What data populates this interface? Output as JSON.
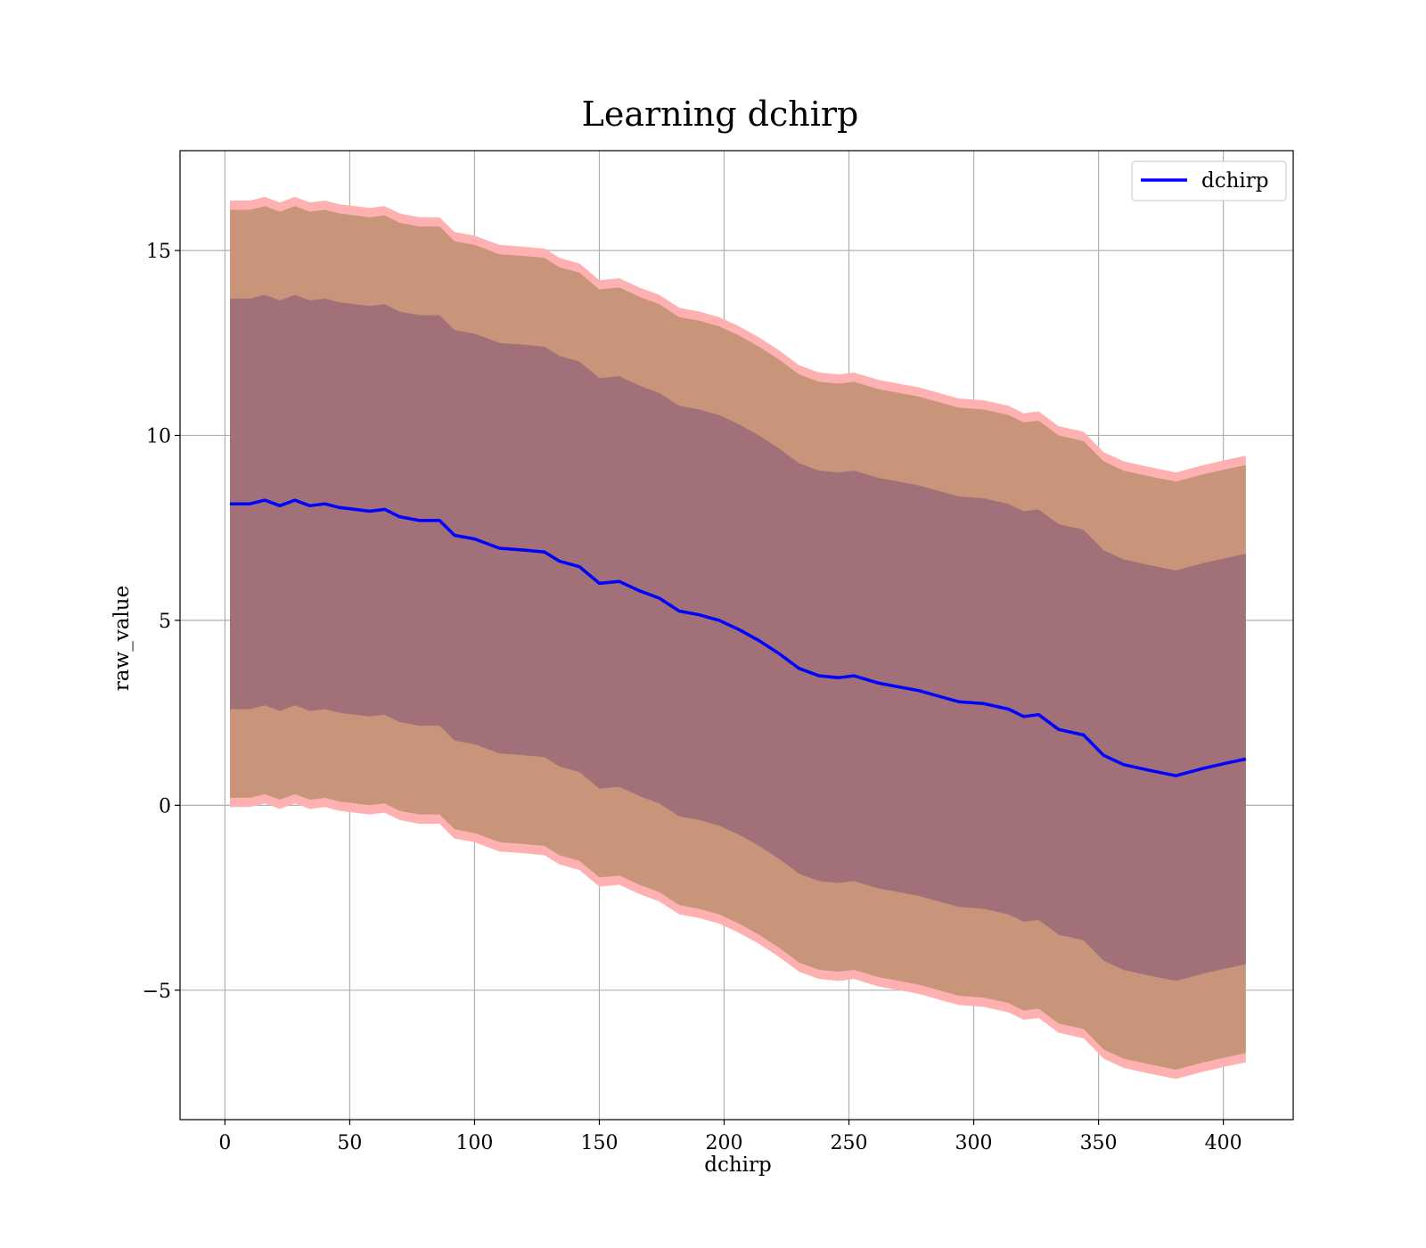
{
  "chart_data": {
    "type": "line",
    "title": "Learning dchirp",
    "xlabel": "dchirp",
    "ylabel": "raw_value",
    "xlim": [
      -18,
      428
    ],
    "ylim": [
      -8.5,
      17.7
    ],
    "xticks": [
      0,
      50,
      100,
      150,
      200,
      250,
      300,
      350,
      400
    ],
    "yticks": [
      -5,
      0,
      5,
      10,
      15
    ],
    "ytick_labels": [
      "−5",
      "0",
      "5",
      "10",
      "15"
    ],
    "grid": true,
    "legend_position": "top-right",
    "series": [
      {
        "name": "dchirp",
        "color": "#0000ff",
        "x": [
          2,
          10,
          16,
          22,
          28,
          34,
          40,
          46,
          52,
          58,
          64,
          70,
          78,
          86,
          92,
          100,
          110,
          120,
          128,
          134,
          142,
          150,
          158,
          166,
          174,
          182,
          190,
          198,
          206,
          214,
          222,
          230,
          238,
          246,
          252,
          262,
          270,
          278,
          286,
          294,
          304,
          314,
          320,
          326,
          334,
          344,
          352,
          360,
          370,
          381,
          392,
          402,
          409
        ],
        "y": [
          8.15,
          8.15,
          8.25,
          8.1,
          8.25,
          8.1,
          8.15,
          8.05,
          8.0,
          7.95,
          8.0,
          7.8,
          7.7,
          7.7,
          7.3,
          7.2,
          6.95,
          6.9,
          6.85,
          6.6,
          6.45,
          6.0,
          6.05,
          5.8,
          5.6,
          5.25,
          5.15,
          5.0,
          4.75,
          4.45,
          4.1,
          3.7,
          3.5,
          3.45,
          3.5,
          3.3,
          3.2,
          3.1,
          2.95,
          2.8,
          2.75,
          2.6,
          2.4,
          2.45,
          2.05,
          1.9,
          1.35,
          1.1,
          0.95,
          0.8,
          1.0,
          1.15,
          1.25
        ]
      }
    ],
    "bands": [
      {
        "description_color": "#ffb0b0",
        "x": [
          2,
          10,
          16,
          22,
          28,
          34,
          40,
          46,
          52,
          58,
          64,
          70,
          78,
          86,
          92,
          100,
          110,
          120,
          128,
          134,
          142,
          150,
          158,
          166,
          174,
          182,
          190,
          198,
          206,
          214,
          222,
          230,
          238,
          246,
          252,
          262,
          270,
          278,
          286,
          294,
          304,
          314,
          320,
          326,
          334,
          344,
          352,
          360,
          370,
          381,
          392,
          402,
          409
        ],
        "upper": [
          16.35,
          16.35,
          16.45,
          16.3,
          16.45,
          16.3,
          16.35,
          16.25,
          16.2,
          16.15,
          16.2,
          16.0,
          15.9,
          15.9,
          15.5,
          15.4,
          15.15,
          15.1,
          15.05,
          14.8,
          14.65,
          14.2,
          14.25,
          14.0,
          13.8,
          13.45,
          13.35,
          13.2,
          12.95,
          12.65,
          12.3,
          11.9,
          11.7,
          11.65,
          11.7,
          11.5,
          11.4,
          11.3,
          11.15,
          11.0,
          10.95,
          10.8,
          10.6,
          10.65,
          10.25,
          10.1,
          9.55,
          9.3,
          9.15,
          9.0,
          9.2,
          9.35,
          9.45
        ],
        "lower": [
          -0.05,
          -0.05,
          0.05,
          -0.1,
          0.05,
          -0.1,
          -0.05,
          -0.15,
          -0.2,
          -0.25,
          -0.2,
          -0.4,
          -0.5,
          -0.5,
          -0.9,
          -1.0,
          -1.25,
          -1.3,
          -1.35,
          -1.6,
          -1.75,
          -2.2,
          -2.15,
          -2.4,
          -2.6,
          -2.95,
          -3.05,
          -3.2,
          -3.45,
          -3.75,
          -4.1,
          -4.5,
          -4.7,
          -4.75,
          -4.7,
          -4.9,
          -5.0,
          -5.1,
          -5.25,
          -5.4,
          -5.45,
          -5.6,
          -5.8,
          -5.75,
          -6.15,
          -6.3,
          -6.85,
          -7.1,
          -7.25,
          -7.4,
          -7.2,
          -7.05,
          -6.95
        ]
      },
      {
        "description_color": "#c8957a",
        "x": [
          2,
          10,
          16,
          22,
          28,
          34,
          40,
          46,
          52,
          58,
          64,
          70,
          78,
          86,
          92,
          100,
          110,
          120,
          128,
          134,
          142,
          150,
          158,
          166,
          174,
          182,
          190,
          198,
          206,
          214,
          222,
          230,
          238,
          246,
          252,
          262,
          270,
          278,
          286,
          294,
          304,
          314,
          320,
          326,
          334,
          344,
          352,
          360,
          370,
          381,
          392,
          402,
          409
        ],
        "upper": [
          16.1,
          16.1,
          16.2,
          16.05,
          16.2,
          16.05,
          16.1,
          16.0,
          15.95,
          15.9,
          15.95,
          15.75,
          15.65,
          15.65,
          15.25,
          15.15,
          14.9,
          14.85,
          14.8,
          14.55,
          14.4,
          13.95,
          14.0,
          13.75,
          13.55,
          13.2,
          13.1,
          12.95,
          12.7,
          12.4,
          12.05,
          11.65,
          11.45,
          11.4,
          11.45,
          11.25,
          11.15,
          11.05,
          10.9,
          10.75,
          10.7,
          10.55,
          10.35,
          10.4,
          10.0,
          9.85,
          9.3,
          9.05,
          8.9,
          8.75,
          8.95,
          9.1,
          9.2
        ],
        "lower": [
          0.2,
          0.2,
          0.3,
          0.15,
          0.3,
          0.15,
          0.2,
          0.1,
          0.05,
          0.0,
          0.05,
          -0.15,
          -0.25,
          -0.25,
          -0.65,
          -0.75,
          -1.0,
          -1.05,
          -1.1,
          -1.35,
          -1.5,
          -1.95,
          -1.9,
          -2.15,
          -2.35,
          -2.7,
          -2.8,
          -2.95,
          -3.2,
          -3.5,
          -3.85,
          -4.25,
          -4.45,
          -4.5,
          -4.45,
          -4.65,
          -4.75,
          -4.85,
          -5.0,
          -5.15,
          -5.2,
          -5.35,
          -5.55,
          -5.5,
          -5.9,
          -6.05,
          -6.6,
          -6.85,
          -7.0,
          -7.15,
          -6.95,
          -6.8,
          -6.7
        ]
      },
      {
        "description_color": "#a27079",
        "x": [
          2,
          10,
          16,
          22,
          28,
          34,
          40,
          46,
          52,
          58,
          64,
          70,
          78,
          86,
          92,
          100,
          110,
          120,
          128,
          134,
          142,
          150,
          158,
          166,
          174,
          182,
          190,
          198,
          206,
          214,
          222,
          230,
          238,
          246,
          252,
          262,
          270,
          278,
          286,
          294,
          304,
          314,
          320,
          326,
          334,
          344,
          352,
          360,
          370,
          381,
          392,
          402,
          409
        ],
        "upper": [
          13.7,
          13.7,
          13.8,
          13.65,
          13.8,
          13.65,
          13.7,
          13.6,
          13.55,
          13.5,
          13.55,
          13.35,
          13.25,
          13.25,
          12.85,
          12.75,
          12.5,
          12.45,
          12.4,
          12.15,
          12.0,
          11.55,
          11.6,
          11.35,
          11.15,
          10.8,
          10.7,
          10.55,
          10.3,
          10.0,
          9.65,
          9.25,
          9.05,
          9.0,
          9.05,
          8.85,
          8.75,
          8.65,
          8.5,
          8.35,
          8.3,
          8.15,
          7.95,
          8.0,
          7.6,
          7.45,
          6.9,
          6.65,
          6.5,
          6.35,
          6.55,
          6.7,
          6.8
        ],
        "lower": [
          2.6,
          2.6,
          2.7,
          2.55,
          2.7,
          2.55,
          2.6,
          2.5,
          2.45,
          2.4,
          2.45,
          2.25,
          2.15,
          2.15,
          1.75,
          1.65,
          1.4,
          1.35,
          1.3,
          1.05,
          0.9,
          0.45,
          0.5,
          0.25,
          0.05,
          -0.3,
          -0.4,
          -0.55,
          -0.8,
          -1.1,
          -1.45,
          -1.85,
          -2.05,
          -2.1,
          -2.05,
          -2.25,
          -2.35,
          -2.45,
          -2.6,
          -2.75,
          -2.8,
          -2.95,
          -3.15,
          -3.1,
          -3.5,
          -3.65,
          -4.2,
          -4.45,
          -4.6,
          -4.75,
          -4.55,
          -4.4,
          -4.3
        ]
      }
    ]
  }
}
